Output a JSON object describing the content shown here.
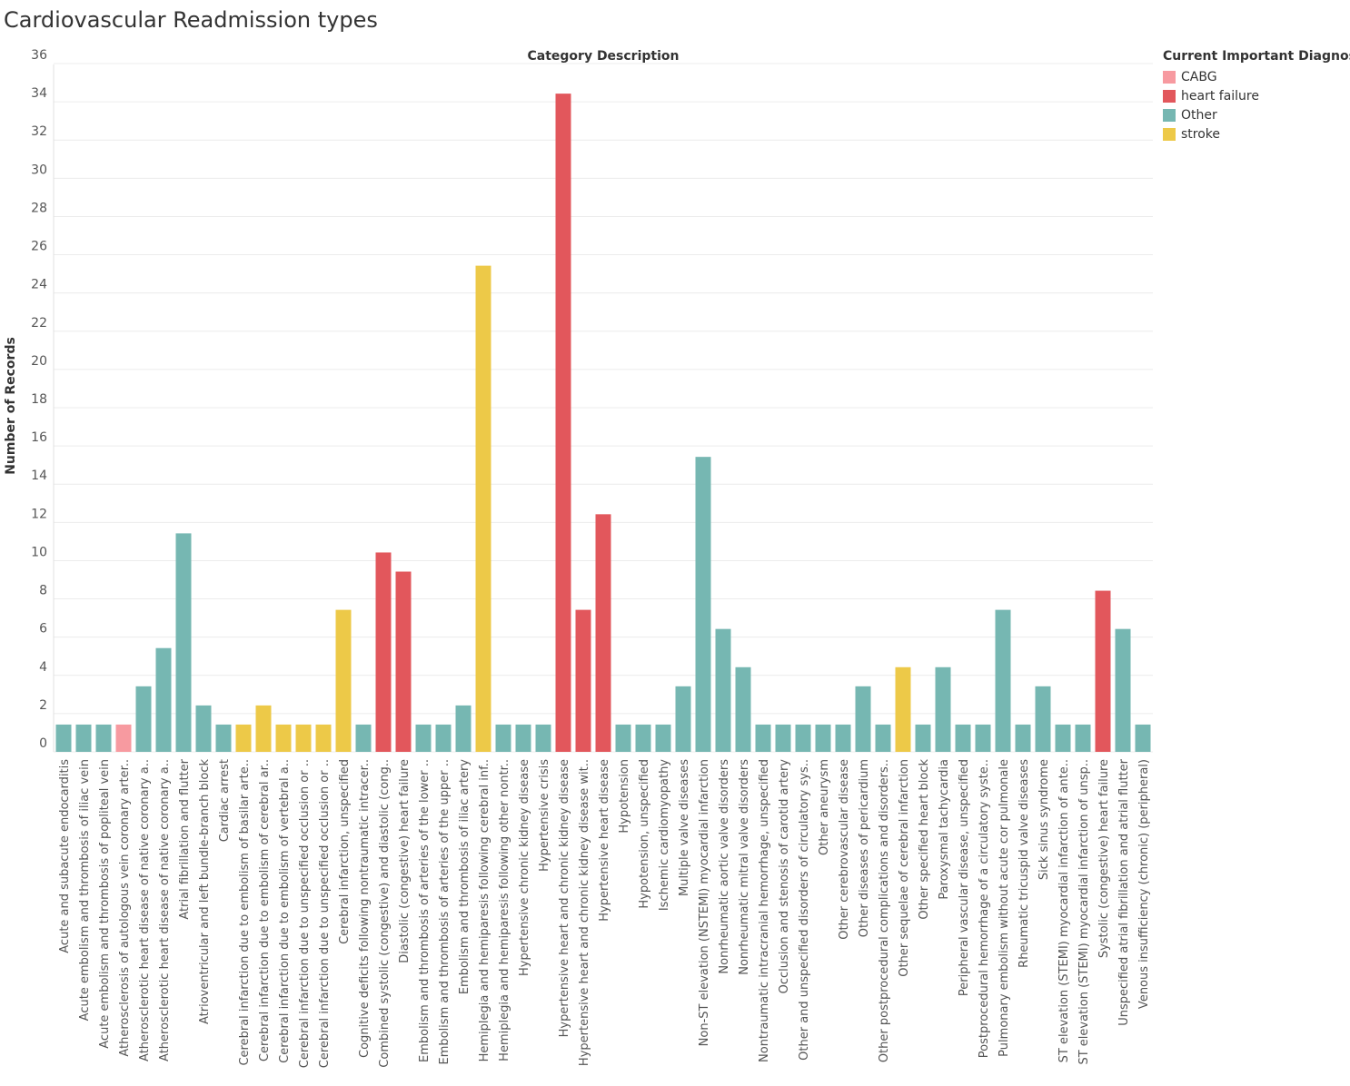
{
  "chart_data": {
    "type": "bar",
    "title": "Cardiovascular Readmission types",
    "column_header": "Category Description",
    "ylabel": "Number of Records",
    "xlabel": "",
    "ylim": [
      0,
      36
    ],
    "yticks": [
      0,
      2,
      4,
      6,
      8,
      10,
      12,
      14,
      16,
      18,
      20,
      22,
      24,
      26,
      28,
      30,
      32,
      34,
      36
    ],
    "grid": true,
    "legend_position": "top-right",
    "legend": {
      "title": "Current Important Diagnosis",
      "items": [
        {
          "label": "CABG",
          "color": "#f79aa0"
        },
        {
          "label": "heart failure",
          "color": "#e2575c"
        },
        {
          "label": "Other",
          "color": "#76b7b2"
        },
        {
          "label": "stroke",
          "color": "#edc948"
        }
      ]
    },
    "categories": [
      "Acute and subacute endocarditis",
      "Acute embolism and thrombosis of iliac vein",
      "Acute embolism and thrombosis of popliteal vein",
      "Atherosclerosis of autologous vein coronary arter..",
      "Atherosclerotic heart disease of native coronary a..",
      "Atherosclerotic heart disease of native coronary a..",
      "Atrial fibrillation and flutter",
      "Atrioventricular and left bundle-branch block",
      "Cardiac arrest",
      "Cerebral infarction due to embolism of basilar arte..",
      "Cerebral infarction due to embolism of cerebral ar..",
      "Cerebral infarction due to embolism of vertebral a..",
      "Cerebral infarction due to unspecified occlusion or ..",
      "Cerebral infarction due to unspecified occlusion or ..",
      "Cerebral infarction, unspecified",
      "Cognitive deficits following nontraumatic intracer..",
      "Combined systolic (congestive) and diastolic (cong..",
      "Diastolic (congestive) heart failure",
      "Embolism and thrombosis of arteries of the lower ..",
      "Embolism and thrombosis of arteries of the upper ..",
      "Embolism and thrombosis of iliac artery",
      "Hemiplegia and hemiparesis following cerebral inf..",
      "Hemiplegia and hemiparesis following other nontr..",
      "Hypertensive chronic kidney disease",
      "Hypertensive crisis",
      "Hypertensive heart and chronic kidney disease",
      "Hypertensive heart and chronic kidney disease wit..",
      "Hypertensive heart disease",
      "Hypotension",
      "Hypotension, unspecified",
      "Ischemic cardiomyopathy",
      "Multiple valve diseases",
      "Non-ST elevation (NSTEMI) myocardial infarction",
      "Nonrheumatic aortic valve disorders",
      "Nonrheumatic mitral valve disorders",
      "Nontraumatic intracranial hemorrhage, unspecified",
      "Occlusion and stenosis of carotid artery",
      "Other and unspecified disorders of circulatory sys..",
      "Other aneurysm",
      "Other cerebrovascular disease",
      "Other diseases of pericardium",
      "Other postprocedural complications and disorders..",
      "Other sequelae of cerebral infarction",
      "Other specified heart block",
      "Paroxysmal tachycardia",
      "Peripheral vascular disease, unspecified",
      "Postprocedural hemorrhage of a circulatory syste..",
      "Pulmonary embolism without acute cor pulmonale",
      "Rheumatic tricuspid valve diseases",
      "Sick sinus syndrome",
      "ST elevation (STEMI) myocardial infarction of ante..",
      "ST elevation (STEMI) myocardial infarction of unsp..",
      "Systolic (congestive) heart failure",
      "Unspecified atrial fibrillation and atrial flutter",
      "Venous insufficiency (chronic) (peripheral)"
    ],
    "values": [
      1,
      1,
      1,
      1,
      3,
      5,
      11,
      2,
      1,
      1,
      2,
      1,
      1,
      1,
      7,
      1,
      10,
      9,
      1,
      1,
      2,
      25,
      1,
      1,
      1,
      34,
      7,
      12,
      1,
      1,
      1,
      3,
      15,
      6,
      4,
      1,
      1,
      1,
      1,
      1,
      3,
      1,
      4,
      1,
      4,
      1,
      1,
      7,
      1,
      3,
      1,
      1,
      8,
      6,
      1
    ],
    "groups": [
      "Other",
      "Other",
      "Other",
      "CABG",
      "Other",
      "Other",
      "Other",
      "Other",
      "Other",
      "stroke",
      "stroke",
      "stroke",
      "stroke",
      "stroke",
      "stroke",
      "Other",
      "heart failure",
      "heart failure",
      "Other",
      "Other",
      "Other",
      "stroke",
      "Other",
      "Other",
      "Other",
      "heart failure",
      "heart failure",
      "heart failure",
      "Other",
      "Other",
      "Other",
      "Other",
      "Other",
      "Other",
      "Other",
      "Other",
      "Other",
      "Other",
      "Other",
      "Other",
      "Other",
      "Other",
      "stroke",
      "Other",
      "Other",
      "Other",
      "Other",
      "Other",
      "Other",
      "Other",
      "Other",
      "Other",
      "heart failure",
      "Other",
      "Other"
    ]
  }
}
